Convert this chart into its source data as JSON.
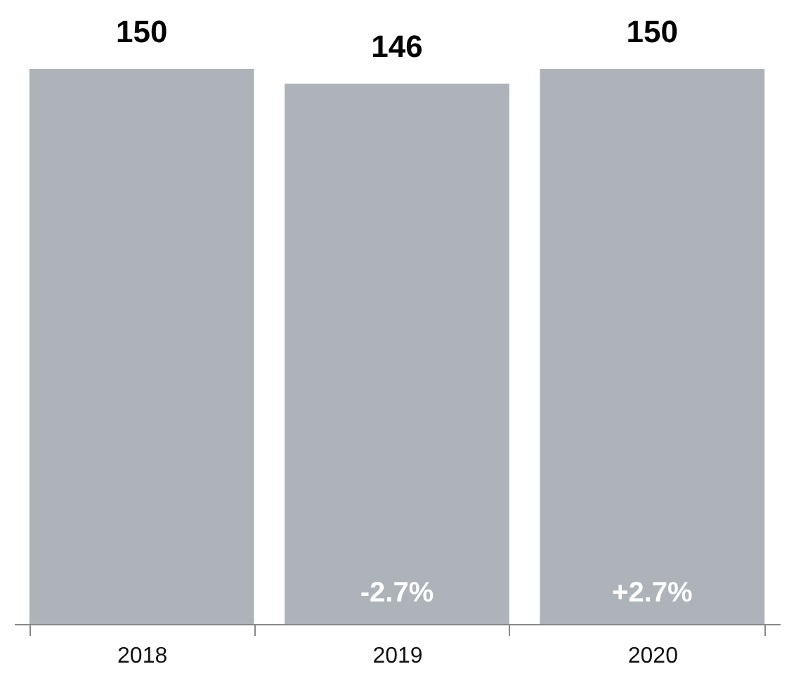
{
  "chart_data": {
    "type": "bar",
    "categories": [
      "2018",
      "2019",
      "2020"
    ],
    "values": [
      150,
      146,
      150
    ],
    "color": "#adb3b9",
    "data_labels": true,
    "annotations": [
      "-2.7%",
      "+2.7%"
    ]
  }
}
